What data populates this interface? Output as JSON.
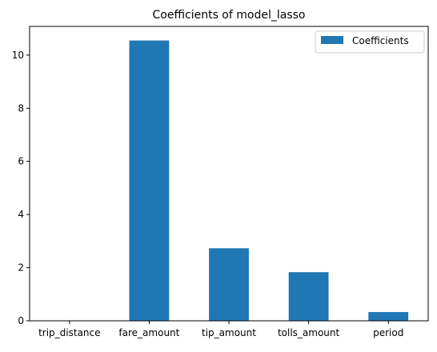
{
  "chart_data": {
    "type": "bar",
    "title": "Coefficients of model_lasso",
    "xlabel": "",
    "ylabel": "",
    "categories": [
      "trip_distance",
      "fare_amount",
      "tip_amount",
      "tolls_amount",
      "period"
    ],
    "series": [
      {
        "name": "Coefficients",
        "values": [
          0.0,
          10.55,
          2.73,
          1.83,
          0.33
        ],
        "color": "#1f77b4"
      }
    ],
    "ylim": [
      0,
      11.08
    ],
    "yticks": [
      0,
      2,
      4,
      6,
      8,
      10
    ],
    "ytick_labels": [
      "0",
      "2",
      "4",
      "6",
      "8",
      "10"
    ],
    "grid": false,
    "legend_position": "top-right"
  }
}
